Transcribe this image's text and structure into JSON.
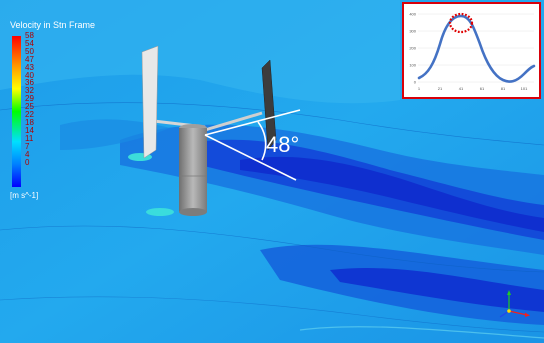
{
  "legend": {
    "title": "Velocity in Stn Frame",
    "values": [
      "58",
      "54",
      "50",
      "47",
      "43",
      "40",
      "36",
      "32",
      "29",
      "25",
      "22",
      "18",
      "14",
      "11",
      "7",
      "4",
      "0"
    ],
    "unit": "[m s^-1]"
  },
  "angle": {
    "label": "48°"
  },
  "inset_chart": {
    "y_ticks": [
      "400",
      "300",
      "200",
      "100",
      "0"
    ],
    "x_ticks": [
      "1",
      "21",
      "41",
      "61",
      "81",
      "101"
    ],
    "line_color": "#4472c4",
    "highlight_color": "#e00000"
  },
  "colors": {
    "frame": "#d8000a",
    "field_light": "#22a8ee",
    "field_dark": "#1230d8"
  }
}
